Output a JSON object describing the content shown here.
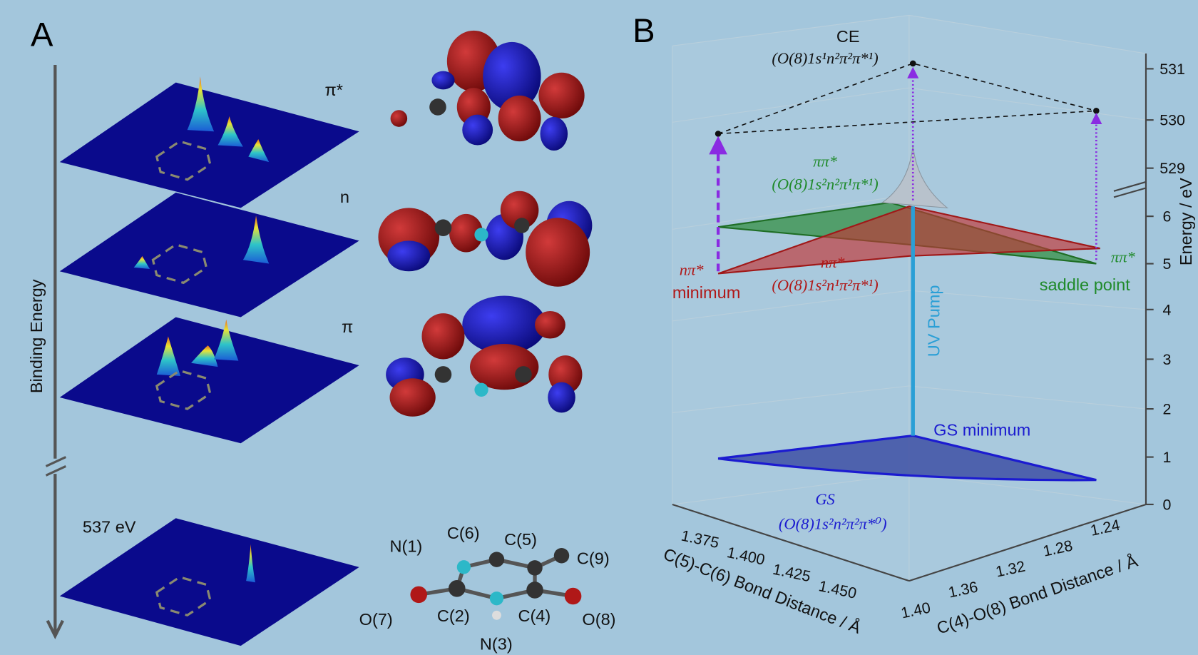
{
  "panel_a": {
    "label": "A",
    "axis_label": "Binding Energy",
    "energy_label": "537 eV",
    "orbitals": [
      "π*",
      "n",
      "π"
    ],
    "atoms": [
      "N(1)",
      "C(6)",
      "C(5)",
      "C(9)",
      "O(7)",
      "C(2)",
      "C(4)",
      "O(8)",
      "N(3)"
    ]
  },
  "panel_b": {
    "label": "B",
    "ce_label": "CE",
    "ce_config": "(O(8)1s¹n²π²π*¹)",
    "pipi_label": "ππ*",
    "pipi_config": "(O(8)1s²n²π¹π*¹)",
    "npi_min_label": "nπ*",
    "npi_min_text": "minimum",
    "npi_label": "nπ*",
    "npi_config": "(O(8)1s²n¹π²π*¹)",
    "saddle_label": "ππ*",
    "saddle_text": "saddle point",
    "pump_label": "UV Pump",
    "gs_min_label": "GS minimum",
    "gs_label": "GS",
    "gs_config": "(O(8)1s²n²π²π*⁰)",
    "energy_axis_label": "Energy / eV",
    "energy_ticks_upper": [
      529,
      530,
      531
    ],
    "energy_ticks": [
      0,
      1,
      2,
      3,
      4,
      5,
      6
    ],
    "x_axis_label": "C(5)-C(6) Bond Distance / Å",
    "x_ticks": [
      "1.375",
      "1.400",
      "1.425",
      "1.450"
    ],
    "y_axis_label": "C(4)-O(8) Bond Distance / Å",
    "y_ticks": [
      "1.40",
      "1.36",
      "1.32",
      "1.28",
      "1.24"
    ]
  }
}
